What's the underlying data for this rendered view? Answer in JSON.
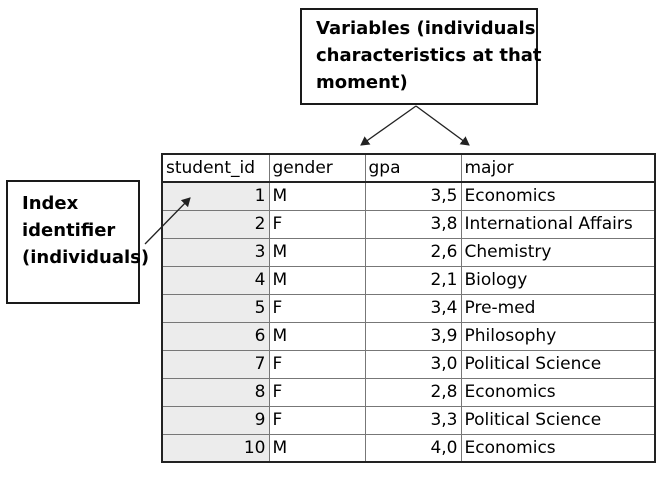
{
  "variables_callout": {
    "lines": [
      "Variables (individuals",
      "characteristics at that",
      "moment)"
    ]
  },
  "index_callout": {
    "lines": [
      "Index",
      "identifier",
      "(individuals)"
    ]
  },
  "table": {
    "headers": [
      "student_id",
      "gender",
      "gpa",
      "major"
    ],
    "rows": [
      [
        "1",
        "M",
        "3,5",
        "Economics"
      ],
      [
        "2",
        "F",
        "3,8",
        "International Affairs"
      ],
      [
        "3",
        "M",
        "2,6",
        "Chemistry"
      ],
      [
        "4",
        "M",
        "2,1",
        "Biology"
      ],
      [
        "5",
        "F",
        "3,4",
        "Pre-med"
      ],
      [
        "6",
        "M",
        "3,9",
        "Philosophy"
      ],
      [
        "7",
        "F",
        "3,0",
        "Political Science"
      ],
      [
        "8",
        "F",
        "2,8",
        "Economics"
      ],
      [
        "9",
        "F",
        "3,3",
        "Political Science"
      ],
      [
        "10",
        "M",
        "4,0",
        "Economics"
      ]
    ]
  }
}
